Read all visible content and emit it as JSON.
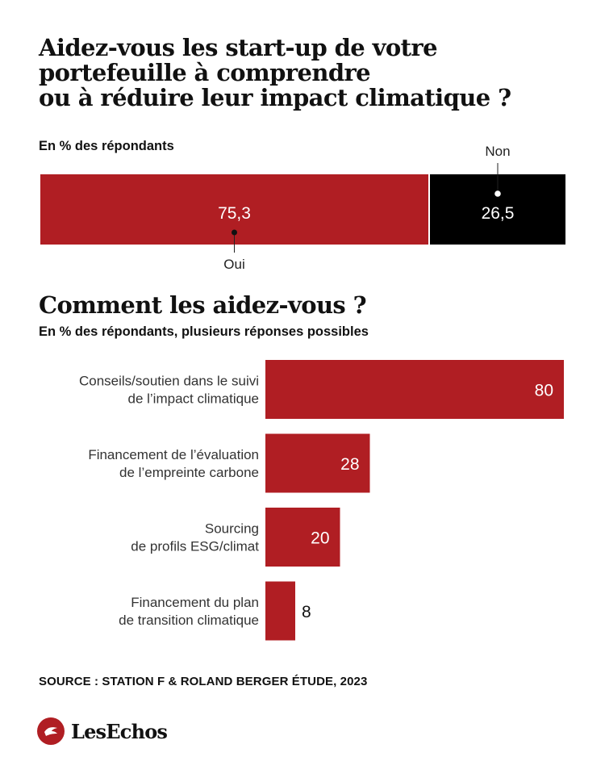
{
  "title_lines": [
    "Aidez-vous les start-up de votre",
    "portefeuille à comprendre",
    "ou à réduire leur impact climatique ?"
  ],
  "subtitle1": "En % des répondants",
  "title2": "Comment les aidez-vous ?",
  "subtitle2": "En % des répondants, plusieurs réponses possibles",
  "source": "SOURCE : STATION F & ROLAND BERGER ÉTUDE, 2023",
  "brand": "LesEchos",
  "colors": {
    "red": "#b01e23",
    "black": "#000000"
  },
  "chart_data": [
    {
      "type": "bar",
      "orientation": "stacked-horizontal",
      "categories": [
        "Oui",
        "Non"
      ],
      "values": [
        75.3,
        26.5
      ],
      "value_labels": [
        "75,3",
        "26,5"
      ],
      "colors": [
        "#b01e23",
        "#000000"
      ]
    },
    {
      "type": "bar",
      "orientation": "horizontal",
      "categories": [
        [
          "Conseils/soutien dans le suivi",
          "de l’impact climatique"
        ],
        [
          "Financement de l’évaluation",
          "de l’empreinte carbone"
        ],
        [
          "Sourcing",
          "de profils ESG/climat"
        ],
        [
          "Financement du plan",
          "de transition climatique"
        ]
      ],
      "values": [
        80,
        28,
        20,
        8
      ],
      "value_labels": [
        "80",
        "28",
        "20",
        "8"
      ],
      "xlim": [
        0,
        80
      ],
      "color": "#b01e23"
    }
  ]
}
